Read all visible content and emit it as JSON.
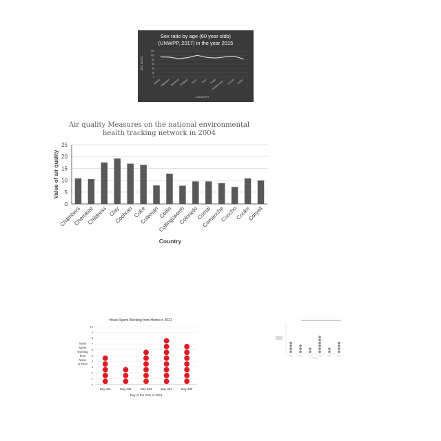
{
  "chart_data": [
    {
      "type": "line",
      "title_lines": [
        "Sex ratio by age (60 year olds)",
        "(UNWPP, 2017) in the year 2015"
      ],
      "xlabel": "COUNTRY",
      "ylabel": "SEX RATIO",
      "categories": [
        "Taiwan",
        "Tajikistan",
        "Tanzania",
        "Thailand",
        "Timor",
        "Togo",
        "Tonga",
        "Trinidad and ...",
        "Tunisia",
        "Turkey"
      ],
      "values": [
        93,
        92,
        85,
        90,
        100,
        91,
        88,
        93,
        96,
        84
      ],
      "yticks": [
        "120",
        "100",
        "80",
        "60",
        "40",
        "20",
        "0"
      ],
      "ylim": [
        0,
        120
      ],
      "background": "#3a3a3a",
      "line_color": "#d9d9d9"
    },
    {
      "type": "bar",
      "title_lines": [
        "Air quality Measures on the national environmental",
        "health tracking network in 2004"
      ],
      "xlabel": "Country",
      "ylabel": "Value of air quality",
      "categories": [
        "Chambers",
        "Cherokee",
        "Childress",
        "Clay",
        "Cochran",
        "Coke",
        "Coleman",
        "Collin",
        "Collingsworth",
        "Colorado",
        "Comal",
        "Comanche",
        "Concho",
        "Cooke",
        "Coryell"
      ],
      "values": [
        10.8,
        10.5,
        17.5,
        19.2,
        17,
        16.5,
        7.8,
        12.8,
        7.7,
        9.5,
        9.5,
        8.8,
        7.2,
        10.8,
        9.9
      ],
      "yticks": [
        "25",
        "20",
        "15",
        "10",
        "5",
        "0"
      ],
      "ylim": [
        0,
        25
      ],
      "grid": true,
      "bar_color": "#595959"
    },
    {
      "type": "dot",
      "title": "Hours Spent Working from Home in 2021",
      "xlabel": "Day of the Year in 2021",
      "ylabel_lines": [
        "hours",
        "spent",
        "working",
        "from",
        "home",
        "in 2021"
      ],
      "categories": [
        "Day 331",
        "Day 332",
        "Day 333",
        "Day 334",
        "Day 335"
      ],
      "values": [
        5,
        3,
        6,
        8,
        7
      ],
      "yticks": [
        "10",
        "9",
        "8",
        "7",
        "6",
        "5",
        "4",
        "3",
        "2",
        "1",
        "0"
      ],
      "ylim": [
        0,
        10
      ],
      "dot_color": "#dd1c24"
    },
    {
      "type": "dot",
      "values": [
        4,
        3,
        2,
        6,
        2,
        4
      ],
      "ylim": [
        0,
        10
      ],
      "dot_color": "#8c8c8c"
    }
  ]
}
